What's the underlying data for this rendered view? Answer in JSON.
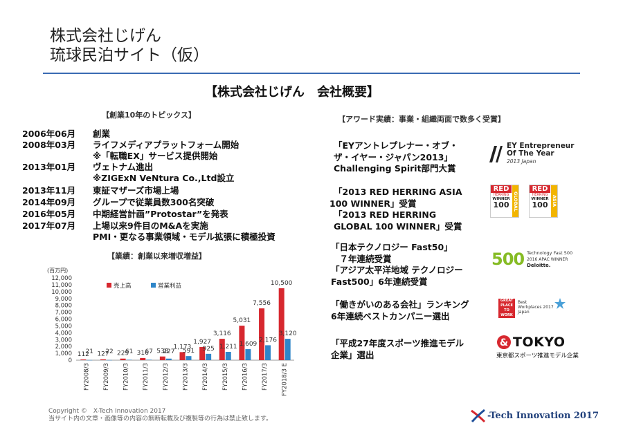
{
  "header": {
    "title_line1": "株式会社じげん",
    "title_line2": "琉球民泊サイト（仮）"
  },
  "section_title": "【株式会社じげん　会社概要】",
  "timeline": {
    "heading": "【創業10年のトピックス】",
    "rows": [
      {
        "date": "2006年06月",
        "text": "創業"
      },
      {
        "date": "2008年03月",
        "text": "ライフメディアプラットフォーム開始",
        "cont": "※「転職EX」サービス提供開始"
      },
      {
        "date": "2013年01月",
        "text": "ヴェトナム進出",
        "cont": "※ZIGExN VeNtura Co.,Ltd設立"
      },
      {
        "date": "2013年11月",
        "text": "東証マザーズ市場上場"
      },
      {
        "date": "2014年09月",
        "text": "グループで従業員数300名突破"
      },
      {
        "date": "2016年05月",
        "text": "中期経営計画”Protostar”を発表"
      },
      {
        "date": "2017年07月",
        "text": "上場以来9件目のM&Aを実施",
        "cont": "PMI・更なる事業領域・モデル拡張に積極投資"
      }
    ]
  },
  "awards": {
    "heading": "【アワード実績：事業・組織両面で数多く受賞】",
    "items": [
      {
        "lines": [
          "「EYアントレプレナー・オブ・",
          "ザ・イヤー・ジャパン2013」",
          "Challenging Spirit部門大賞"
        ]
      },
      {
        "lines": [
          "「2013 RED HERRING ASIA",
          "100 WINNER」受賞",
          "「2013 RED HERRING",
          "GLOBAL 100 WINNER」受賞"
        ]
      },
      {
        "lines": [
          "「日本テクノロジー Fast50」",
          "　７年連続受賞",
          "「アジア太平洋地域 テクノロジー",
          "Fast500」6年連続受賞"
        ]
      },
      {
        "lines": [
          "「働きがいのある会社」ランキング",
          "6年連続ベストカンパニー選出"
        ]
      },
      {
        "lines": [
          "「平成27年度スポーツ推進モデル",
          "企業」選出"
        ]
      }
    ],
    "logos": {
      "ey": {
        "l1": "EY Entrepreneur",
        "l2": "Of The Year",
        "l3": "2013 Japan"
      },
      "rh": {
        "red": "RED",
        "herring": "HERRING",
        "winner": "WINNER",
        "n": "100",
        "asia": "ASIA",
        "global": "GLOBAL"
      },
      "deloitte": {
        "num": "500",
        "l1": "Technology Fast 500",
        "l2": "2016 APAC WINNER",
        "l3": "Deloitte."
      },
      "gpw": {
        "l1": "GREAT",
        "l2": "PLACE",
        "l3": "TO",
        "l4": "WORK",
        "b1": "Best",
        "b2": "Workplaces",
        "b3": "2017",
        "b4": "Japan"
      },
      "tokyo": {
        "name": "TOKYO",
        "sub": "東京都スポーツ推進モデル企業"
      }
    },
    "colors": {
      "red": "#d7282f",
      "green": "#86bc25",
      "ey_yellow": "#ffe600"
    }
  },
  "chart_data": {
    "type": "bar",
    "title": "【業績：創業以来増収増益】",
    "ylabel": "(百万円)",
    "ylim": [
      0,
      12000
    ],
    "yticks": [
      "12,000",
      "11,000",
      "10,000",
      "9,000",
      "8,000",
      "7,000",
      "6,000",
      "5,000",
      "4,000",
      "3,000",
      "2,000",
      "1,000",
      "0"
    ],
    "categories": [
      "FY2008/3",
      "FY2009/3",
      "FY2010/3",
      "FY2011/3",
      "FY2012/3",
      "FY2013/3",
      "FY2014/3",
      "FY2015/3",
      "FY2016/3",
      "FY2017/3",
      "FY2018/3 E"
    ],
    "series": [
      {
        "name": "売上高",
        "color": "#d7282f",
        "values": [
          112,
          127,
          229,
          316,
          538,
          1173,
          1927,
          3116,
          5031,
          7556,
          10500
        ],
        "labels": [
          "112",
          "127",
          "229",
          "316",
          "538",
          "1,173",
          "1,927",
          "3,116",
          "5,031",
          "7,556",
          "10,500"
        ]
      },
      {
        "name": "営業利益",
        "color": "#2f86c9",
        "values": [
          21,
          22,
          61,
          67,
          227,
          591,
          925,
          1211,
          1609,
          2176,
          3120
        ],
        "labels": [
          "21",
          "22",
          "61",
          "67",
          "227",
          "591",
          "925",
          "1,211",
          "1,609",
          "2,176",
          "3,120"
        ]
      }
    ],
    "legend": "top-left",
    "grid": false
  },
  "footer": {
    "copyright": "Copyright ©　X-Tech Innovation 2017",
    "notice": "当サイト内の文章・画像等の内容の無断転載及び複製等の行為は禁止致します。",
    "brand": "-Tech Innovation 2017"
  }
}
